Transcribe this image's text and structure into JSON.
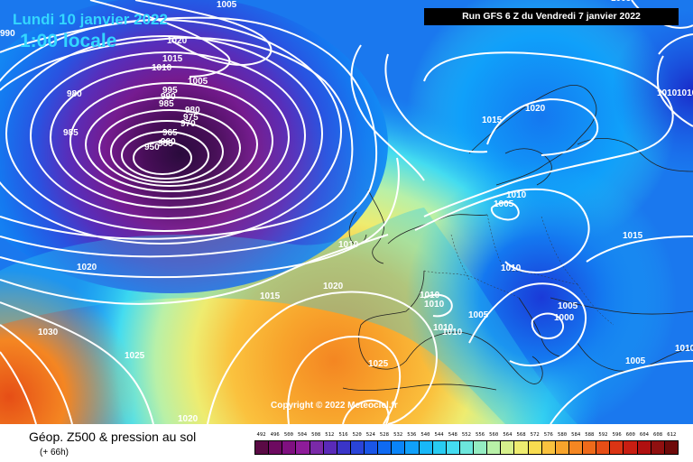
{
  "header": {
    "date_line": "Lundi 10 janvier 2022",
    "time_line": "1:00 locale",
    "run_info": "Run GFS 6 Z du Vendredi 7 janvier 2022"
  },
  "map": {
    "copyright": "Copyright © 2022 Meteociel.fr",
    "isobar_labels": [
      "1005",
      "1020",
      "1015",
      "1010",
      "1005",
      "995",
      "990",
      "985",
      "980",
      "975",
      "970",
      "965",
      "960",
      "955",
      "950",
      "980",
      "985",
      "990",
      "1015",
      "1020",
      "1010",
      "1010",
      "1015",
      "1010",
      "1005",
      "1010",
      "1020",
      "1030",
      "1025",
      "1020",
      "1010",
      "1010",
      "1010",
      "1005",
      "1005",
      "1000",
      "1005",
      "1010",
      "1025",
      "1020",
      "1015",
      "1005",
      "1010",
      "1010"
    ]
  },
  "footer": {
    "parameter_title": "Géop. Z500 & pression au sol",
    "lead_time": "(+ 66h)"
  },
  "legend": {
    "values": [
      "492",
      "496",
      "500",
      "504",
      "508",
      "512",
      "516",
      "520",
      "524",
      "528",
      "532",
      "536",
      "540",
      "544",
      "548",
      "552",
      "556",
      "560",
      "564",
      "568",
      "572",
      "576",
      "580",
      "584",
      "588",
      "592",
      "596",
      "600",
      "604",
      "608",
      "612"
    ],
    "colors": [
      "#5a0a45",
      "#6d0a60",
      "#7f1080",
      "#8e1c99",
      "#7a2aa8",
      "#5a2ab8",
      "#3a35c8",
      "#2a44d8",
      "#1a55e6",
      "#0f6af2",
      "#0a84f8",
      "#10a0fa",
      "#18b8f8",
      "#28ccf2",
      "#44dcf0",
      "#6ce6dc",
      "#94ecc2",
      "#b8f0a8",
      "#d6f08c",
      "#eeec70",
      "#f8dc50",
      "#fac23e",
      "#f8a42c",
      "#f48622",
      "#ee6a1a",
      "#e64e16",
      "#da3414",
      "#c81e12",
      "#b01010",
      "#901010",
      "#6e0a0a"
    ]
  }
}
